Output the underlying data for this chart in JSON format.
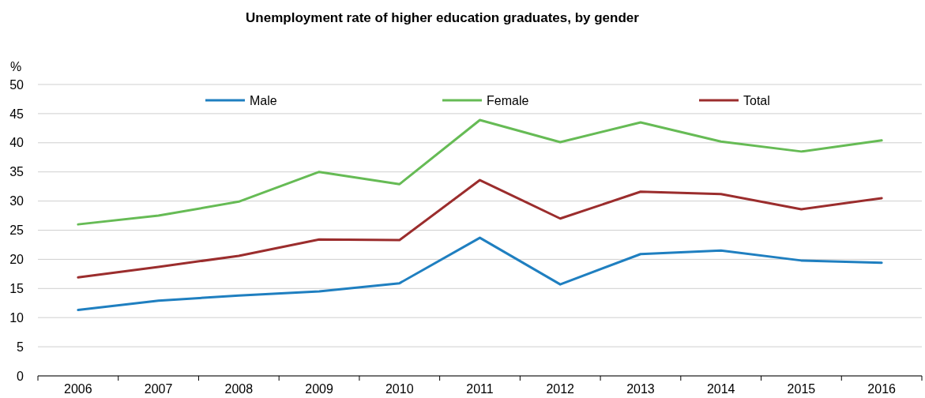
{
  "chart_data": {
    "type": "line",
    "title": "Unemployment rate of higher education graduates, by gender",
    "ylabel": "%",
    "categories": [
      "2006",
      "2007",
      "2008",
      "2009",
      "2010",
      "2011",
      "2012",
      "2013",
      "2014",
      "2015",
      "2016"
    ],
    "series": [
      {
        "name": "Male",
        "color": "#1f7fc0",
        "values": [
          11.3,
          12.9,
          13.8,
          14.5,
          15.9,
          23.7,
          15.7,
          20.9,
          21.5,
          19.8,
          19.4
        ]
      },
      {
        "name": "Female",
        "color": "#66bb55",
        "values": [
          26.0,
          27.5,
          29.9,
          35.0,
          32.9,
          43.9,
          40.1,
          43.5,
          40.2,
          38.5,
          40.4
        ]
      },
      {
        "name": "Total",
        "color": "#9b2d2d",
        "values": [
          16.9,
          18.7,
          20.6,
          23.4,
          23.3,
          33.6,
          27.0,
          31.6,
          31.2,
          28.6,
          30.5
        ]
      }
    ],
    "ylim": [
      0,
      50
    ],
    "yticks": [
      0,
      5,
      10,
      15,
      20,
      25,
      30,
      35,
      40,
      45,
      50
    ],
    "grid": "y",
    "legend": "top",
    "marker": "none",
    "line_style": "solid"
  }
}
